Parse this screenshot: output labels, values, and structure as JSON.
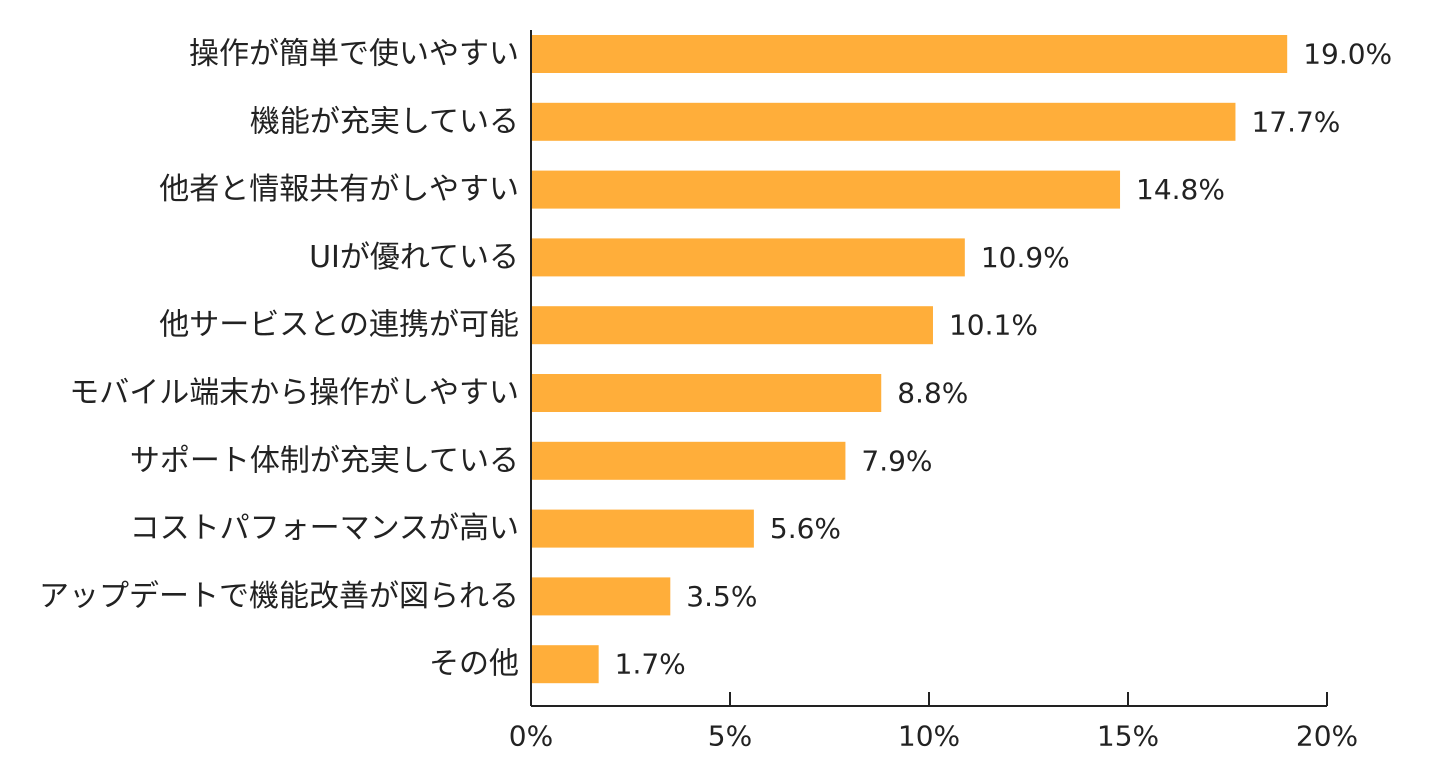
{
  "chart_data": {
    "type": "bar",
    "orientation": "horizontal",
    "categories": [
      "操作が簡単で使いやすい",
      "機能が充実している",
      "他者と情報共有がしやすい",
      "UIが優れている",
      "他サービスとの連携が可能",
      "モバイル端末から操作がしやすい",
      "サポート体制が充実している",
      "コストパフォーマンスが高い",
      "アップデートで機能改善が図られる",
      "その他"
    ],
    "values": [
      19.0,
      17.7,
      14.8,
      10.9,
      10.1,
      8.8,
      7.9,
      5.6,
      3.5,
      1.7
    ],
    "value_labels": [
      "19.0%",
      "17.7%",
      "14.8%",
      "10.9%",
      "10.1%",
      "8.8%",
      "7.9%",
      "5.6%",
      "3.5%",
      "1.7%"
    ],
    "xlim": [
      0,
      20
    ],
    "x_ticks": [
      0,
      5,
      10,
      15,
      20
    ],
    "x_tick_labels": [
      "0%",
      "5%",
      "10%",
      "15%",
      "20%"
    ],
    "title": "",
    "xlabel": "",
    "ylabel": "",
    "grid": false,
    "bar_color": "#FFAE3A",
    "axis_color": "#222222"
  }
}
